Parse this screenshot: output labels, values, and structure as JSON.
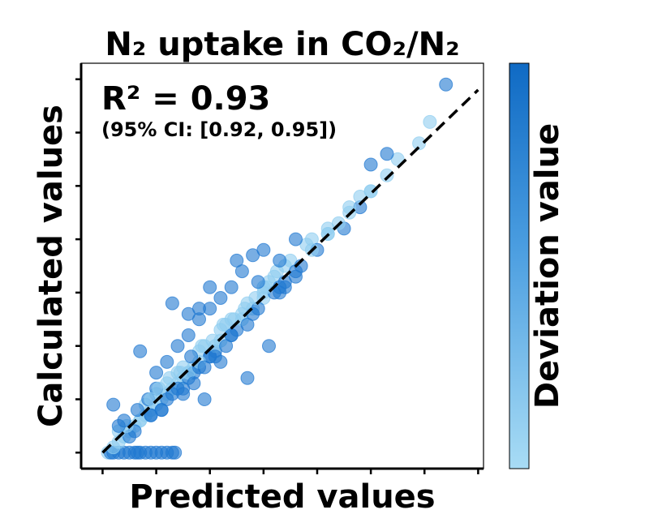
{
  "chart_data": {
    "type": "scatter",
    "title": "N₂ uptake in CO₂/N₂",
    "xlabel": "Predicted values",
    "ylabel": "Calculated values",
    "annotation": {
      "r2": "R² = 0.93",
      "ci": "(95% CI: [0.92, 0.95])"
    },
    "colorbar": {
      "label": "Deviation value",
      "colors": [
        "#a8dcf5",
        "#4a9de0",
        "#0f6ac4"
      ]
    },
    "point_color": "#1f78d1",
    "reference_line": {
      "style": "dashed",
      "color": "#000000",
      "from": [
        0.0,
        0.0
      ],
      "to": [
        7.0,
        6.8
      ]
    },
    "xlim": [
      -0.4,
      7.1
    ],
    "ylim": [
      -0.3,
      7.3
    ],
    "x_ticks": [
      0,
      1,
      2,
      3,
      4,
      5,
      6,
      7
    ],
    "y_ticks": [
      0,
      1,
      2,
      3,
      4,
      5,
      6,
      7
    ],
    "tick_labels_shown": false,
    "grid": false,
    "series": [
      {
        "x": [
          0.1,
          0.15,
          0.2,
          0.3,
          0.4,
          0.5,
          0.6,
          0.65,
          0.7,
          0.8,
          0.9,
          1.0,
          1.1,
          1.2,
          1.3,
          1.35,
          0.2,
          0.3,
          0.4,
          0.5,
          0.6,
          0.7,
          0.8,
          0.9,
          1.0,
          1.1,
          1.2,
          1.3,
          1.4,
          1.5,
          1.6,
          1.7,
          0.5,
          0.7,
          0.9,
          1.0,
          1.2,
          1.4,
          1.6,
          1.8,
          2.0,
          2.2,
          2.4,
          2.6,
          2.8,
          3.0,
          3.2,
          3.4,
          0.8,
          1.0,
          1.3,
          1.5,
          1.7,
          1.9,
          2.1,
          2.3,
          2.5,
          2.7,
          2.9,
          3.1,
          3.3,
          3.5,
          3.7,
          3.9,
          1.1,
          1.4,
          1.6,
          1.8,
          2.0,
          2.2,
          2.4,
          2.6,
          2.8,
          3.0,
          3.2,
          3.4,
          3.6,
          3.8,
          4.0,
          4.2,
          0.6,
          0.9,
          1.2,
          1.5,
          1.8,
          2.1,
          2.4,
          2.7,
          3.0,
          3.3,
          3.6,
          3.9,
          4.2,
          4.5,
          4.8,
          5.0,
          0.3,
          0.45,
          0.65,
          0.85,
          1.05,
          1.25,
          1.45,
          1.65,
          1.85,
          2.05,
          2.25,
          2.45,
          2.65,
          2.85,
          3.05,
          3.25,
          1.0,
          1.2,
          1.4,
          1.6,
          1.8,
          2.0,
          2.2,
          2.4,
          2.6,
          2.8,
          3.0,
          1.5,
          1.7,
          1.9,
          2.1,
          2.3,
          4.2,
          4.4,
          4.6,
          4.8,
          5.0,
          5.3,
          5.5,
          5.9,
          6.1,
          6.4,
          5.3,
          5.0,
          4.6,
          3.6,
          3.3,
          2.0,
          3.4,
          2.9,
          1.6,
          1.8,
          0.9,
          1.1,
          0.2,
          0.3,
          2.2,
          2.7,
          3.1,
          0.4,
          1.3,
          2.5,
          1.9,
          0.7
        ],
        "y": [
          0.0,
          0.0,
          0.0,
          0.0,
          0.0,
          0.0,
          0.0,
          0.0,
          0.0,
          0.0,
          0.0,
          0.0,
          0.0,
          0.0,
          0.0,
          0.0,
          0.1,
          0.2,
          0.3,
          0.4,
          0.5,
          0.6,
          0.7,
          0.8,
          0.9,
          1.0,
          1.1,
          1.2,
          1.3,
          1.4,
          1.5,
          1.6,
          0.3,
          0.6,
          0.7,
          1.1,
          1.0,
          1.5,
          1.4,
          1.9,
          1.8,
          2.3,
          2.2,
          2.6,
          2.7,
          2.9,
          3.3,
          3.2,
          0.9,
          1.2,
          1.1,
          1.6,
          1.5,
          2.0,
          1.9,
          2.4,
          2.3,
          2.8,
          2.7,
          3.2,
          3.1,
          3.6,
          3.5,
          4.0,
          0.8,
          1.2,
          1.5,
          1.6,
          1.8,
          2.1,
          2.2,
          2.5,
          2.6,
          3.0,
          3.0,
          3.5,
          3.4,
          3.9,
          3.8,
          4.2,
          0.4,
          0.7,
          1.3,
          1.2,
          1.7,
          2.0,
          2.5,
          2.4,
          3.1,
          3.0,
          3.3,
          3.8,
          4.1,
          4.2,
          4.6,
          4.9,
          0.4,
          0.5,
          0.8,
          1.0,
          1.2,
          1.4,
          1.5,
          1.8,
          2.0,
          2.1,
          2.4,
          2.5,
          2.7,
          2.9,
          3.1,
          3.4,
          1.5,
          1.7,
          2.0,
          2.2,
          2.5,
          2.7,
          2.9,
          3.1,
          3.4,
          3.7,
          3.8,
          1.1,
          1.3,
          1.6,
          1.8,
          2.0,
          4.1,
          4.3,
          4.5,
          4.8,
          4.9,
          5.2,
          5.5,
          5.8,
          6.2,
          6.9,
          5.6,
          5.4,
          4.6,
          4.0,
          3.6,
          3.1,
          3.1,
          3.2,
          2.6,
          2.7,
          1.0,
          0.8,
          0.9,
          0.5,
          1.7,
          1.4,
          2.0,
          0.6,
          2.8,
          3.6,
          1.0,
          1.9
        ]
      }
    ]
  }
}
